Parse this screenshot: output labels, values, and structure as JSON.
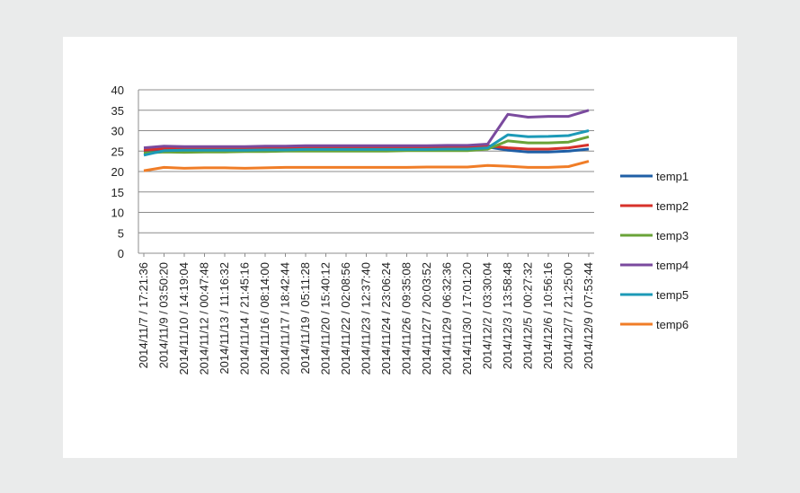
{
  "chart_data": {
    "type": "line",
    "title": "",
    "xlabel": "",
    "ylabel": "",
    "ylim": [
      0,
      40
    ],
    "y_ticks": [
      0,
      5,
      10,
      15,
      20,
      25,
      30,
      35,
      40
    ],
    "grid": true,
    "legend_placement": "right",
    "categories": [
      "2014/11/7 / 17:21:36",
      "2014/11/9 / 03:50:20",
      "2014/11/10 / 14:19:04",
      "2014/11/12 / 00:47:48",
      "2014/11/13 / 11:16:32",
      "2014/11/14 / 21:45:16",
      "2014/11/16 / 08:14:00",
      "2014/11/17 / 18:42:44",
      "2014/11/19 / 05:11:28",
      "2014/11/20 / 15:40:12",
      "2014/11/22 / 02:08:56",
      "2014/11/23 / 12:37:40",
      "2014/11/24 / 23:06:24",
      "2014/11/26 / 09:35:08",
      "2014/11/27 / 20:03:52",
      "2014/11/29 / 06:32:36",
      "2014/11/30 / 17:01:20",
      "2014/12/2 / 03:30:04",
      "2014/12/3 / 13:58:48",
      "2014/12/5 / 00:27:32",
      "2014/12/6 / 10:56:16",
      "2014/12/7 / 21:25:00",
      "2014/12/9 / 07:53:44"
    ],
    "series": [
      {
        "name": "temp1",
        "color": "#1f5fa6",
        "values": [
          25.0,
          25.3,
          25.5,
          25.5,
          25.5,
          25.5,
          25.5,
          25.5,
          25.6,
          25.6,
          25.6,
          25.6,
          25.6,
          25.6,
          25.6,
          25.7,
          25.7,
          26.0,
          25.2,
          24.8,
          24.8,
          25.0,
          25.5
        ]
      },
      {
        "name": "temp2",
        "color": "#d7312a",
        "values": [
          25.2,
          25.6,
          25.8,
          25.8,
          25.7,
          25.8,
          25.8,
          25.9,
          25.9,
          25.9,
          25.9,
          25.9,
          26.0,
          26.0,
          26.0,
          26.0,
          26.1,
          26.3,
          25.8,
          25.5,
          25.5,
          25.8,
          26.5
        ]
      },
      {
        "name": "temp3",
        "color": "#6aa338",
        "values": [
          24.5,
          24.8,
          24.7,
          24.8,
          24.8,
          24.9,
          24.9,
          25.0,
          25.0,
          25.0,
          25.0,
          25.0,
          25.0,
          25.1,
          25.1,
          25.1,
          25.1,
          25.5,
          27.5,
          27.0,
          27.0,
          27.2,
          28.5
        ]
      },
      {
        "name": "temp4",
        "color": "#7a4a9e",
        "values": [
          25.8,
          26.2,
          26.1,
          26.1,
          26.1,
          26.1,
          26.2,
          26.2,
          26.3,
          26.3,
          26.3,
          26.3,
          26.3,
          26.3,
          26.3,
          26.4,
          26.4,
          26.7,
          34.0,
          33.3,
          33.5,
          33.5,
          35.0
        ]
      },
      {
        "name": "temp5",
        "color": "#1c9ab7",
        "values": [
          24.0,
          25.1,
          25.2,
          25.2,
          25.2,
          25.2,
          25.3,
          25.3,
          25.4,
          25.4,
          25.4,
          25.4,
          25.4,
          25.4,
          25.4,
          25.5,
          25.5,
          25.8,
          29.0,
          28.5,
          28.6,
          28.8,
          30.0
        ]
      },
      {
        "name": "temp6",
        "color": "#f07d27",
        "values": [
          20.2,
          21.0,
          20.8,
          20.9,
          20.9,
          20.8,
          20.9,
          21.0,
          21.0,
          21.0,
          21.0,
          21.0,
          21.0,
          21.0,
          21.1,
          21.1,
          21.1,
          21.5,
          21.3,
          21.0,
          21.0,
          21.2,
          22.5
        ]
      }
    ]
  }
}
